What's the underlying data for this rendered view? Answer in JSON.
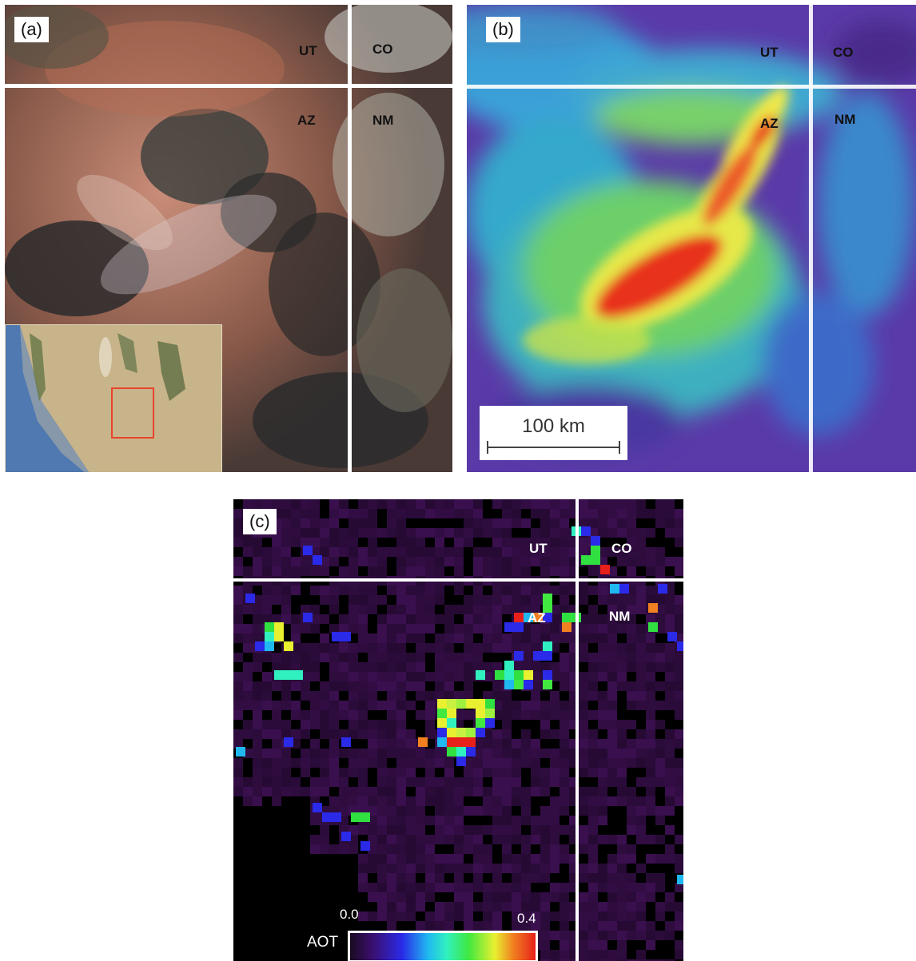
{
  "panels": {
    "a": {
      "label": "(a)",
      "states": {
        "ut": "UT",
        "co": "CO",
        "az": "AZ",
        "nm": "NM"
      },
      "inset_icon": "us-map-inset"
    },
    "b": {
      "label": "(b)",
      "states": {
        "ut": "UT",
        "co": "CO",
        "az": "AZ",
        "nm": "NM"
      },
      "scale_bar": "100 km"
    },
    "c": {
      "label": "(c)",
      "states": {
        "ut": "UT",
        "co": "CO",
        "az": "AZ",
        "nm": "NM"
      },
      "colorbar": {
        "label": "AOT",
        "min": "0.0",
        "max": "0.4"
      }
    }
  },
  "colors": {
    "divider": "#ffffff",
    "inset_box": "#e8442c",
    "plume_peak": "#e8321e",
    "background_purple": "#3a0f4e"
  }
}
